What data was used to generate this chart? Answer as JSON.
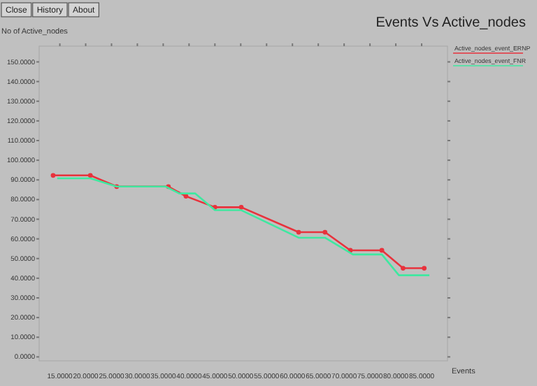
{
  "chart_data": {
    "type": "line",
    "title": "Events Vs Active_nodes",
    "xlabel": "Events",
    "ylabel": "No of Active_nodes",
    "annotations": [
      "Close",
      "History",
      "About"
    ],
    "xlim": [
      11,
      90
    ],
    "ylim": [
      -2,
      158
    ],
    "xticks": [
      {
        "value": 15,
        "label": "15.0000"
      },
      {
        "value": 20,
        "label": "20.0000"
      },
      {
        "value": 25,
        "label": "25.0000"
      },
      {
        "value": 30,
        "label": "30.0000"
      },
      {
        "value": 35,
        "label": "35.0000"
      },
      {
        "value": 40,
        "label": "40.0000"
      },
      {
        "value": 45,
        "label": "45.0000"
      },
      {
        "value": 50,
        "label": "50.0000"
      },
      {
        "value": 55,
        "label": "55.0000"
      },
      {
        "value": 60,
        "label": "60.0000"
      },
      {
        "value": 65,
        "label": "65.0000"
      },
      {
        "value": 70,
        "label": "70.0000"
      },
      {
        "value": 75,
        "label": "75.0000"
      },
      {
        "value": 80,
        "label": "80.0000"
      },
      {
        "value": 85,
        "label": "85.0000"
      }
    ],
    "yticks": [
      {
        "value": 0,
        "label": "0.0000"
      },
      {
        "value": 10,
        "label": "10.0000"
      },
      {
        "value": 20,
        "label": "20.0000"
      },
      {
        "value": 30,
        "label": "30.0000"
      },
      {
        "value": 40,
        "label": "40.0000"
      },
      {
        "value": 50,
        "label": "50.0000"
      },
      {
        "value": 60,
        "label": "60.0000"
      },
      {
        "value": 70,
        "label": "70.0000"
      },
      {
        "value": 80,
        "label": "80.0000"
      },
      {
        "value": 90,
        "label": "90.0000"
      },
      {
        "value": 100,
        "label": "100.0000"
      },
      {
        "value": 110,
        "label": "110.0000"
      },
      {
        "value": 120,
        "label": "120.0000"
      },
      {
        "value": 130,
        "label": "130.0000"
      },
      {
        "value": 140,
        "label": "140.0000"
      },
      {
        "value": 150,
        "label": "150.0000"
      }
    ],
    "legend": "top right",
    "grid": false,
    "series": [
      {
        "name": "Active_nodes_event_ERNP",
        "color": "#e8323c",
        "marker": "circle",
        "x": [
          13.7,
          20.9,
          26.0,
          36.0,
          39.4,
          45.0,
          50.1,
          61.2,
          66.3,
          71.2,
          77.3,
          81.4,
          85.5
        ],
        "values": [
          92.3,
          92.3,
          86.6,
          86.6,
          81.7,
          76.1,
          76.1,
          63.4,
          63.4,
          54.2,
          54.2,
          45.1,
          45.1
        ]
      },
      {
        "name": "Active_nodes_event_FNR",
        "color": "#3ee8a0",
        "marker": "none",
        "x": [
          14.5,
          20.9,
          26.0,
          35.5,
          38.1,
          41.2,
          45.0,
          50.1,
          61.2,
          66.3,
          71.7,
          77.3,
          80.6,
          86.5
        ],
        "values": [
          90.8,
          90.8,
          86.6,
          86.6,
          83.1,
          83.1,
          74.6,
          74.6,
          60.6,
          60.6,
          52.1,
          52.1,
          41.5,
          41.5
        ]
      }
    ]
  }
}
